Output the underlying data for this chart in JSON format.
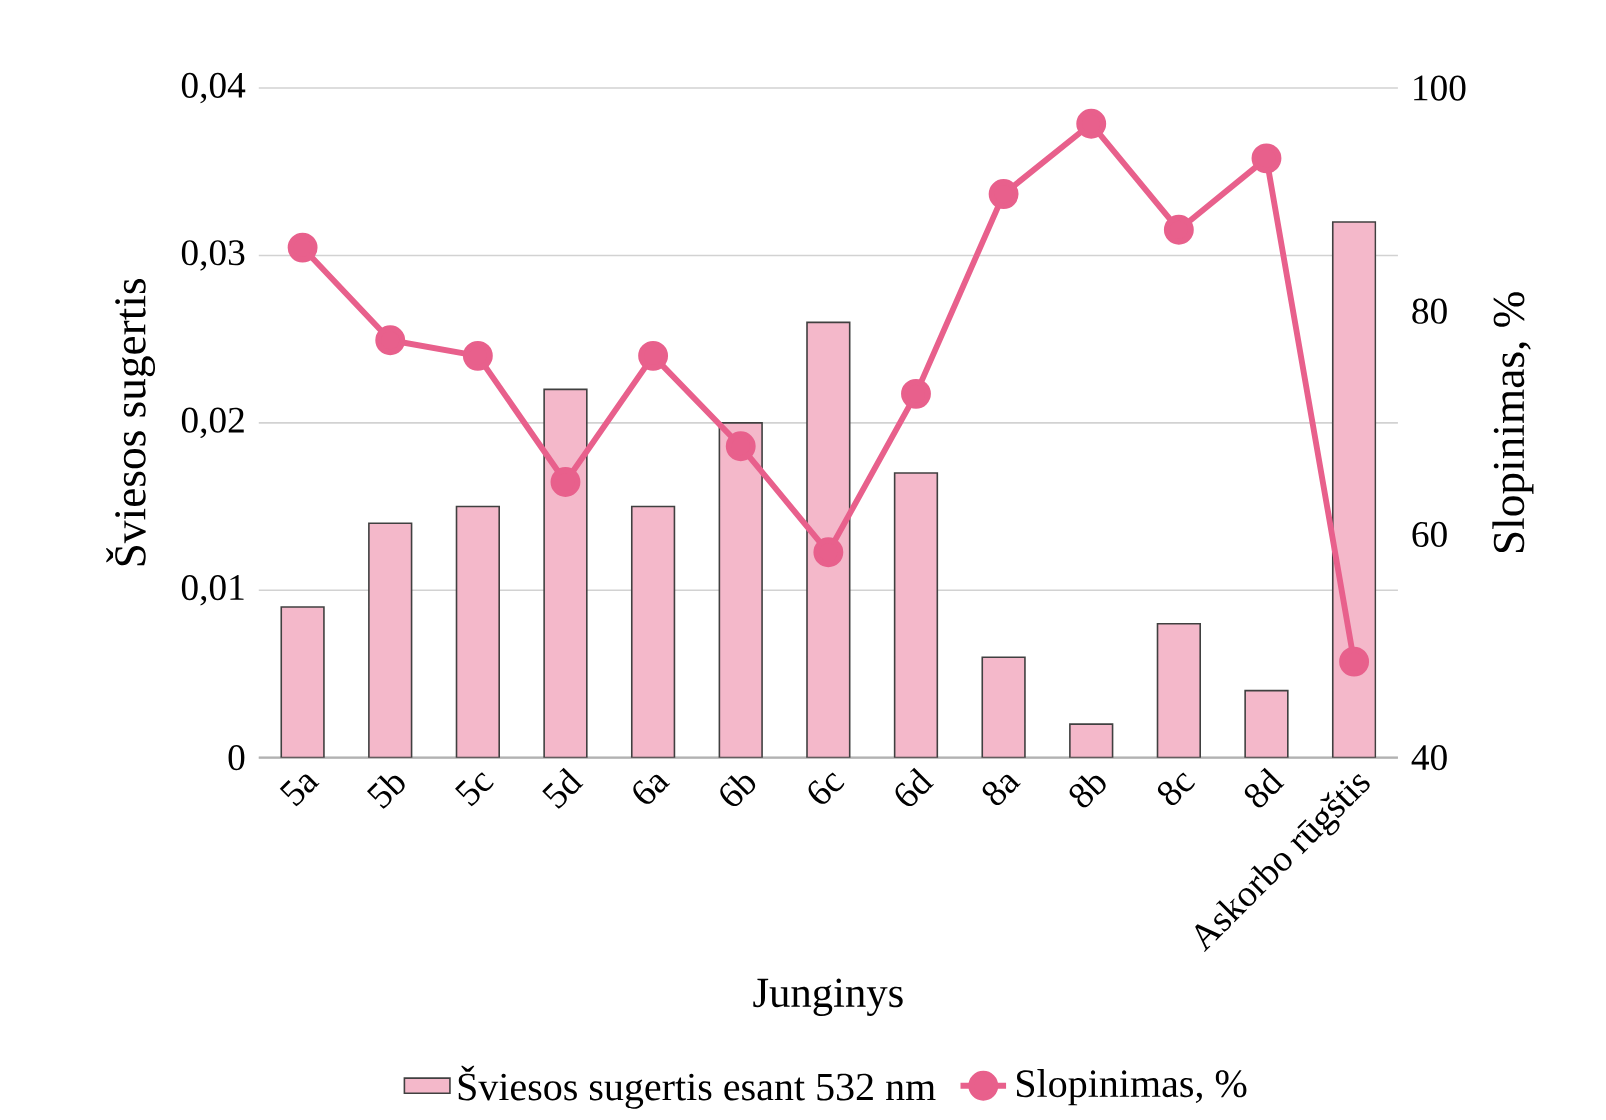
{
  "chart_data": {
    "type": "bar",
    "xlabel": "Junginys",
    "ylabel": "Šviesos sugertis",
    "y2label": "Slopinimas, %",
    "categories": [
      "5a",
      "5b",
      "5c",
      "5d",
      "6a",
      "6b",
      "6c",
      "6d",
      "8a",
      "8b",
      "8c",
      "8d",
      "Askorbo rūgštis"
    ],
    "series": [
      {
        "name": "Šviesos sugertis esant 532 nm",
        "color": "#f4b8ca",
        "values": [
          0.009,
          0.014,
          0.015,
          0.022,
          0.015,
          0.02,
          0.026,
          0.017,
          0.006,
          0.002,
          0.008,
          0.004,
          0.032
        ]
      },
      {
        "name": "Slopinimas, %",
        "type": "line",
        "axis": "y2",
        "color": "#e8608c",
        "marker": "circle",
        "values": [
          85.7,
          77.4,
          76.0,
          64.7,
          76.0,
          67.9,
          58.4,
          72.6,
          90.5,
          96.8,
          87.3,
          93.7,
          48.6
        ]
      }
    ],
    "ylim": [
      0,
      0.04
    ],
    "yticks": [
      0,
      {
        "value": 0.01,
        "label": "0,01"
      },
      {
        "value": 0.02,
        "label": "0,02"
      },
      {
        "value": 0.03,
        "label": "0,03"
      },
      {
        "value": 0.04,
        "label": "0,04"
      }
    ],
    "y2lim": [
      40,
      100
    ],
    "y2ticks": [
      40,
      60,
      80,
      100
    ],
    "grid": "y",
    "legend": "bottom"
  }
}
